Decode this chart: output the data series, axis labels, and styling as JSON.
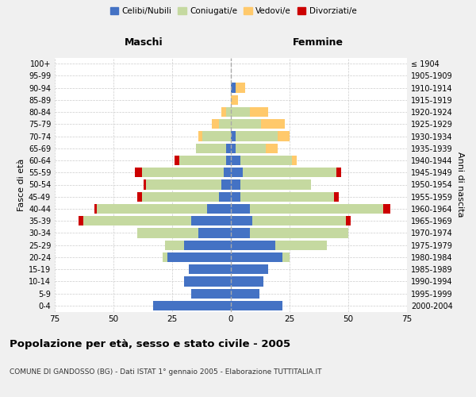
{
  "age_groups": [
    "0-4",
    "5-9",
    "10-14",
    "15-19",
    "20-24",
    "25-29",
    "30-34",
    "35-39",
    "40-44",
    "45-49",
    "50-54",
    "55-59",
    "60-64",
    "65-69",
    "70-74",
    "75-79",
    "80-84",
    "85-89",
    "90-94",
    "95-99",
    "100+"
  ],
  "birth_years": [
    "2000-2004",
    "1995-1999",
    "1990-1994",
    "1985-1989",
    "1980-1984",
    "1975-1979",
    "1970-1974",
    "1965-1969",
    "1960-1964",
    "1955-1959",
    "1950-1954",
    "1945-1949",
    "1940-1944",
    "1935-1939",
    "1930-1934",
    "1925-1929",
    "1920-1924",
    "1915-1919",
    "1910-1914",
    "1905-1909",
    "≤ 1904"
  ],
  "male_celibi": [
    33,
    17,
    20,
    18,
    27,
    20,
    14,
    17,
    10,
    5,
    4,
    3,
    2,
    2,
    0,
    0,
    0,
    0,
    0,
    0,
    0
  ],
  "male_coniugati": [
    0,
    0,
    0,
    0,
    2,
    8,
    26,
    46,
    47,
    33,
    32,
    35,
    20,
    13,
    12,
    5,
    2,
    0,
    0,
    0,
    0
  ],
  "male_vedovi": [
    0,
    0,
    0,
    0,
    0,
    0,
    0,
    0,
    0,
    0,
    0,
    0,
    0,
    0,
    2,
    3,
    2,
    0,
    0,
    0,
    0
  ],
  "male_divorziati": [
    0,
    0,
    0,
    0,
    0,
    0,
    0,
    2,
    1,
    2,
    1,
    3,
    2,
    0,
    0,
    0,
    0,
    0,
    0,
    0,
    0
  ],
  "female_celibi": [
    22,
    12,
    14,
    16,
    22,
    19,
    8,
    9,
    8,
    4,
    4,
    5,
    4,
    2,
    2,
    0,
    0,
    0,
    2,
    0,
    0
  ],
  "female_coniugati": [
    0,
    0,
    0,
    0,
    3,
    22,
    42,
    40,
    57,
    40,
    30,
    40,
    22,
    13,
    18,
    13,
    8,
    0,
    0,
    0,
    0
  ],
  "female_vedovi": [
    0,
    0,
    0,
    0,
    0,
    0,
    0,
    0,
    0,
    0,
    0,
    0,
    2,
    5,
    5,
    10,
    8,
    3,
    4,
    0,
    0
  ],
  "female_divorziati": [
    0,
    0,
    0,
    0,
    0,
    0,
    0,
    2,
    3,
    2,
    0,
    2,
    0,
    0,
    0,
    0,
    0,
    0,
    0,
    0,
    0
  ],
  "color_celibi": "#4472c4",
  "color_coniugati": "#c5d9a0",
  "color_vedovi": "#ffc96b",
  "color_divorziati": "#cc0000",
  "title": "Popolazione per età, sesso e stato civile - 2005",
  "subtitle": "COMUNE DI GANDOSSO (BG) - Dati ISTAT 1° gennaio 2005 - Elaborazione TUTTITALIA.IT",
  "xlabel_left": "Maschi",
  "xlabel_right": "Femmine",
  "ylabel_left": "Fasce di età",
  "ylabel_right": "Anni di nascita",
  "xlim": 75,
  "bg_color": "#f0f0f0",
  "plot_bg_color": "#ffffff"
}
